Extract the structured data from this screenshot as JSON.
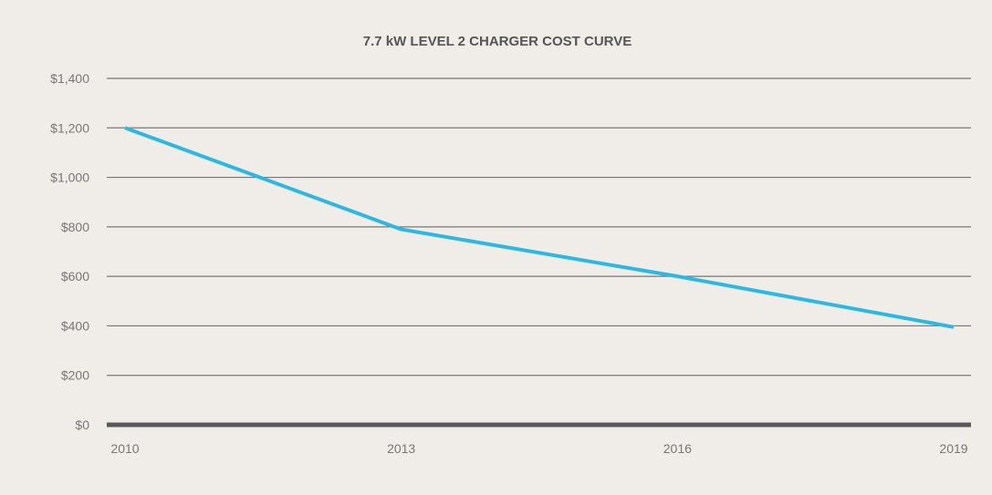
{
  "chart_data": {
    "type": "line",
    "title": "7.7 kW LEVEL 2 CHARGER COST CURVE",
    "xlabel": "",
    "ylabel": "",
    "x": [
      2010,
      2013,
      2016,
      2019
    ],
    "x_tick_labels": [
      "2010",
      "2013",
      "2016",
      "2019"
    ],
    "values": [
      1200,
      790,
      600,
      395
    ],
    "ylim": [
      0,
      1400
    ],
    "y_ticks": [
      0,
      200,
      400,
      600,
      800,
      1000,
      1200,
      1400
    ],
    "y_tick_labels": [
      "$0",
      "$200",
      "$400",
      "$600",
      "$800",
      "$1,000",
      "$1,200",
      "$1,400"
    ],
    "grid": true,
    "legend": "none",
    "colors": {
      "line": "#2bb8e3",
      "grid": "#777777",
      "baseline": "#58585a",
      "background": "#f0ede9"
    }
  }
}
